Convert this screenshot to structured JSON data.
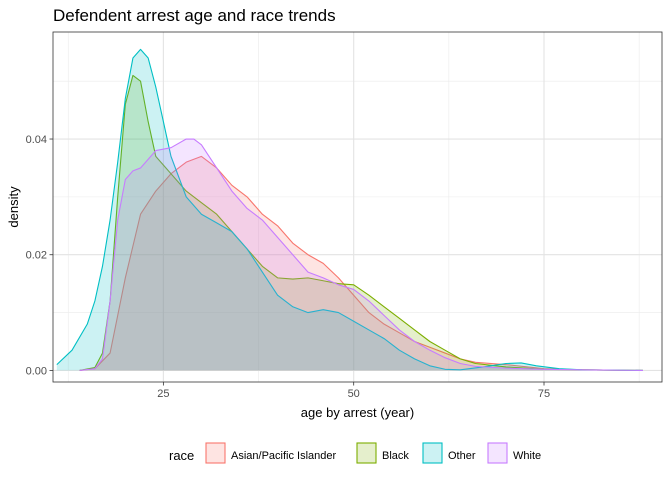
{
  "chart_data": {
    "type": "area",
    "title": "Defendent arrest age and race trends",
    "xlabel": "age by arrest (year)",
    "ylabel": "density",
    "xlim": [
      10.5,
      90.5
    ],
    "ylim": [
      -0.002,
      0.0585
    ],
    "x_ticks": [
      25,
      50,
      75
    ],
    "y_ticks": [
      0.0,
      0.02,
      0.04
    ],
    "x_tick_labels": [
      "25",
      "50",
      "75"
    ],
    "y_tick_labels": [
      "0.00",
      "0.02",
      "0.04"
    ],
    "grid": true,
    "legend": {
      "title": "race",
      "position": "bottom"
    },
    "series": [
      {
        "name": "Asian/Pacific Islander",
        "color": "#F8766D",
        "points": [
          [
            14,
            0
          ],
          [
            16,
            0.0003
          ],
          [
            18,
            0.003
          ],
          [
            20,
            0.016
          ],
          [
            22,
            0.027
          ],
          [
            24,
            0.031
          ],
          [
            26,
            0.034
          ],
          [
            28,
            0.036
          ],
          [
            30,
            0.037
          ],
          [
            32,
            0.035
          ],
          [
            34,
            0.032
          ],
          [
            36,
            0.03
          ],
          [
            38,
            0.027
          ],
          [
            40,
            0.025
          ],
          [
            42,
            0.022
          ],
          [
            44,
            0.02
          ],
          [
            46,
            0.0185
          ],
          [
            48,
            0.016
          ],
          [
            50,
            0.013
          ],
          [
            52,
            0.01
          ],
          [
            54,
            0.008
          ],
          [
            56,
            0.0065
          ],
          [
            58,
            0.005
          ],
          [
            60,
            0.004
          ],
          [
            62,
            0.003
          ],
          [
            64,
            0.002
          ],
          [
            66,
            0.0014
          ],
          [
            70,
            0.001
          ],
          [
            75,
            0.0003
          ],
          [
            80,
            0.0001
          ],
          [
            88,
            0
          ]
        ]
      },
      {
        "name": "Black",
        "color": "#7CAE00",
        "points": [
          [
            14,
            0
          ],
          [
            16,
            0.0005
          ],
          [
            17,
            0.003
          ],
          [
            18,
            0.012
          ],
          [
            19,
            0.03
          ],
          [
            20,
            0.046
          ],
          [
            21,
            0.051
          ],
          [
            22,
            0.05
          ],
          [
            23,
            0.043
          ],
          [
            24,
            0.037
          ],
          [
            26,
            0.034
          ],
          [
            28,
            0.031
          ],
          [
            30,
            0.029
          ],
          [
            32,
            0.027
          ],
          [
            34,
            0.024
          ],
          [
            36,
            0.021
          ],
          [
            38,
            0.018
          ],
          [
            40,
            0.016
          ],
          [
            42,
            0.0158
          ],
          [
            44,
            0.016
          ],
          [
            46,
            0.0155
          ],
          [
            48,
            0.015
          ],
          [
            50,
            0.0148
          ],
          [
            52,
            0.013
          ],
          [
            54,
            0.011
          ],
          [
            56,
            0.009
          ],
          [
            58,
            0.007
          ],
          [
            60,
            0.005
          ],
          [
            62,
            0.0035
          ],
          [
            64,
            0.002
          ],
          [
            66,
            0.0012
          ],
          [
            70,
            0.0006
          ],
          [
            75,
            0.0002
          ],
          [
            80,
            0.0001
          ],
          [
            88,
            0
          ]
        ]
      },
      {
        "name": "Other",
        "color": "#00BFC4",
        "points": [
          [
            11,
            0.001
          ],
          [
            13,
            0.0035
          ],
          [
            15,
            0.008
          ],
          [
            16,
            0.012
          ],
          [
            17,
            0.018
          ],
          [
            18,
            0.026
          ],
          [
            19,
            0.036
          ],
          [
            20,
            0.047
          ],
          [
            21,
            0.054
          ],
          [
            22,
            0.0555
          ],
          [
            23,
            0.054
          ],
          [
            24,
            0.049
          ],
          [
            25,
            0.043
          ],
          [
            26,
            0.037
          ],
          [
            28,
            0.03
          ],
          [
            30,
            0.027
          ],
          [
            32,
            0.0255
          ],
          [
            34,
            0.024
          ],
          [
            36,
            0.021
          ],
          [
            38,
            0.017
          ],
          [
            40,
            0.013
          ],
          [
            42,
            0.011
          ],
          [
            44,
            0.01
          ],
          [
            46,
            0.0105
          ],
          [
            48,
            0.01
          ],
          [
            50,
            0.0085
          ],
          [
            52,
            0.007
          ],
          [
            54,
            0.0055
          ],
          [
            56,
            0.0035
          ],
          [
            58,
            0.002
          ],
          [
            60,
            0.0008
          ],
          [
            62,
            0.0002
          ],
          [
            64,
            0.0001
          ],
          [
            67,
            0.0006
          ],
          [
            70,
            0.0012
          ],
          [
            72,
            0.0013
          ],
          [
            74,
            0.0008
          ],
          [
            77,
            0.0003
          ],
          [
            80,
            0.0001
          ],
          [
            88,
            0
          ]
        ]
      },
      {
        "name": "White",
        "color": "#C77CFF",
        "points": [
          [
            14,
            0
          ],
          [
            16,
            0.0003
          ],
          [
            17,
            0.002
          ],
          [
            18,
            0.012
          ],
          [
            19,
            0.026
          ],
          [
            20,
            0.033
          ],
          [
            21,
            0.0345
          ],
          [
            22,
            0.035
          ],
          [
            24,
            0.038
          ],
          [
            26,
            0.0385
          ],
          [
            28,
            0.04
          ],
          [
            29,
            0.04
          ],
          [
            30,
            0.039
          ],
          [
            32,
            0.035
          ],
          [
            34,
            0.031
          ],
          [
            36,
            0.028
          ],
          [
            38,
            0.026
          ],
          [
            40,
            0.023
          ],
          [
            42,
            0.02
          ],
          [
            44,
            0.017
          ],
          [
            46,
            0.016
          ],
          [
            48,
            0.0148
          ],
          [
            50,
            0.014
          ],
          [
            52,
            0.012
          ],
          [
            54,
            0.0095
          ],
          [
            56,
            0.007
          ],
          [
            58,
            0.005
          ],
          [
            60,
            0.0035
          ],
          [
            62,
            0.0022
          ],
          [
            64,
            0.0012
          ],
          [
            66,
            0.0007
          ],
          [
            70,
            0.0004
          ],
          [
            75,
            0.0002
          ],
          [
            80,
            0.0001
          ],
          [
            88,
            0
          ]
        ]
      }
    ]
  }
}
